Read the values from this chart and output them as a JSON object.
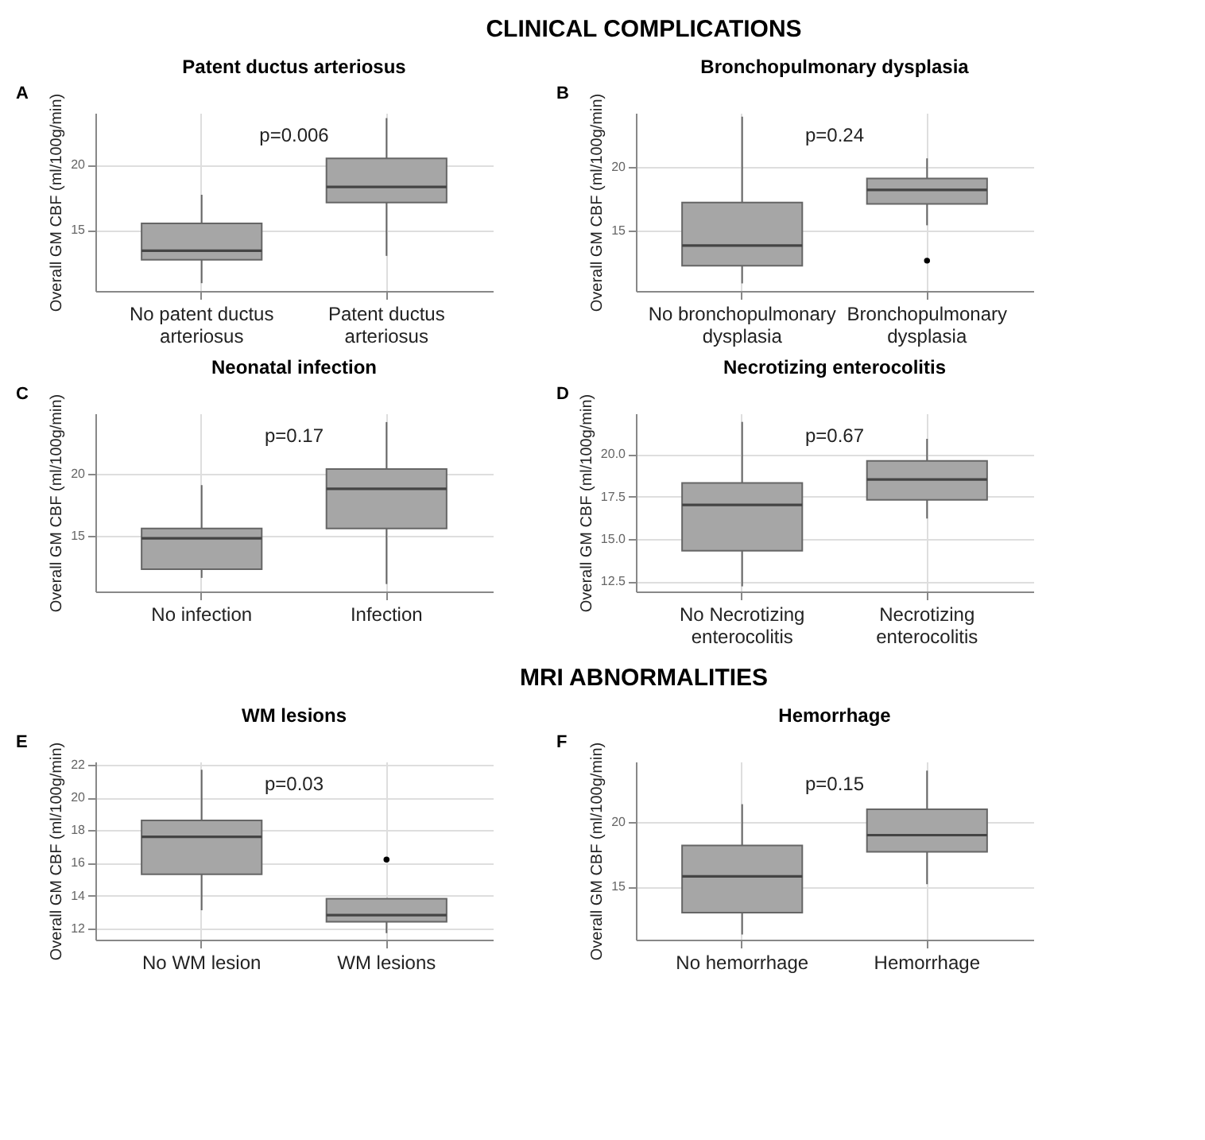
{
  "chart_data": [
    {
      "type": "other",
      "title": "CLINICAL COMPLICATIONS"
    },
    {
      "type": "box",
      "title": "Patent ductus arteriosus",
      "ylabel": "Overall GM CBF (ml/100g/min)",
      "annotations": [
        "A",
        "p=0.006"
      ],
      "categories": [
        "No patent ductus arteriosus",
        "Patent ductus arteriosus"
      ],
      "color": "#a6a6a6",
      "grid": true,
      "ylim": [
        10.3,
        24.0
      ],
      "yticks": [
        15,
        20
      ],
      "boxes": [
        {
          "low": 10.9,
          "q1": 12.7,
          "median": 13.4,
          "q3": 15.5,
          "high": 17.7
        },
        {
          "low": 13.0,
          "q1": 17.1,
          "median": 18.3,
          "q3": 20.5,
          "high": 23.6
        }
      ]
    },
    {
      "type": "box",
      "title": "Bronchopulmonary dysplasia",
      "ylabel": "Overall GM CBF (ml/100g/min)",
      "annotations": [
        "B",
        "p=0.24"
      ],
      "categories": [
        "No bronchopulmonary dysplasia",
        "Bronchopulmonary dysplasia"
      ],
      "color": "#a6a6a6",
      "grid": true,
      "ylim": [
        10.2,
        24.3
      ],
      "yticks": [
        15,
        20
      ],
      "boxes": [
        {
          "low": 10.8,
          "q1": 12.2,
          "median": 13.8,
          "q3": 17.2,
          "high": 24.0
        },
        {
          "low": 15.4,
          "q1": 17.1,
          "median": 18.2,
          "q3": 19.1,
          "high": 20.7,
          "outliers": [
            12.6
          ]
        }
      ]
    },
    {
      "type": "box",
      "title": "Neonatal infection",
      "ylabel": "Overall GM CBF (ml/100g/min)",
      "annotations": [
        "C",
        "p=0.17"
      ],
      "categories": [
        "No infection",
        "Infection"
      ],
      "color": "#a6a6a6",
      "grid": true,
      "ylim": [
        10.5,
        24.9
      ],
      "yticks": [
        15,
        20
      ],
      "boxes": [
        {
          "low": 11.6,
          "q1": 12.3,
          "median": 14.8,
          "q3": 15.6,
          "high": 19.1
        },
        {
          "low": 11.1,
          "q1": 15.6,
          "median": 18.8,
          "q3": 20.4,
          "high": 24.2
        }
      ]
    },
    {
      "type": "box",
      "title": "Necrotizing enterocolitis",
      "ylabel": "Overall GM CBF (ml/100g/min)",
      "annotations": [
        "D",
        "p=0.67"
      ],
      "categories": [
        "No Necrotizing enterocolitis",
        "Necrotizing enterocolitis"
      ],
      "color": "#a6a6a6",
      "grid": true,
      "ylim": [
        11.9,
        22.4
      ],
      "yticks": [
        {
          "value": 12.5,
          "label": "12.5"
        },
        {
          "value": 15,
          "label": "15.0"
        },
        {
          "value": 17.5,
          "label": "17.5"
        },
        {
          "value": 20,
          "label": "20.0"
        }
      ],
      "boxes": [
        {
          "low": 12.2,
          "q1": 14.3,
          "median": 17.0,
          "q3": 18.3,
          "high": 21.9
        },
        {
          "low": 16.2,
          "q1": 17.3,
          "median": 18.5,
          "q3": 19.6,
          "high": 20.9
        }
      ]
    },
    {
      "type": "other",
      "title": "MRI ABNORMALITIES"
    },
    {
      "type": "box",
      "title": "WM lesions",
      "ylabel": "Overall GM CBF (ml/100g/min)",
      "annotations": [
        "E",
        "p=0.03"
      ],
      "categories": [
        "No WM lesion",
        "WM lesions"
      ],
      "color": "#a6a6a6",
      "grid": true,
      "ylim": [
        11.3,
        22.2
      ],
      "yticks": [
        12,
        14,
        16,
        18,
        20,
        22
      ],
      "boxes": [
        {
          "low": 13.1,
          "q1": 15.3,
          "median": 17.6,
          "q3": 18.6,
          "high": 21.7
        },
        {
          "low": 11.7,
          "q1": 12.4,
          "median": 12.8,
          "q3": 13.8,
          "high": 13.8,
          "outliers": [
            16.2
          ]
        }
      ]
    },
    {
      "type": "box",
      "title": "Hemorrhage",
      "ylabel": "Overall GM CBF (ml/100g/min)",
      "annotations": [
        "F",
        "p=0.15"
      ],
      "categories": [
        "No hemorrhage",
        "Hemorrhage"
      ],
      "color": "#a6a6a6",
      "grid": true,
      "ylim": [
        10.9,
        24.7
      ],
      "yticks": [
        15,
        20
      ],
      "boxes": [
        {
          "low": 11.3,
          "q1": 13.0,
          "median": 15.8,
          "q3": 18.2,
          "high": 21.4
        },
        {
          "low": 15.2,
          "q1": 17.7,
          "median": 19.0,
          "q3": 21.0,
          "high": 24.0
        }
      ]
    }
  ]
}
